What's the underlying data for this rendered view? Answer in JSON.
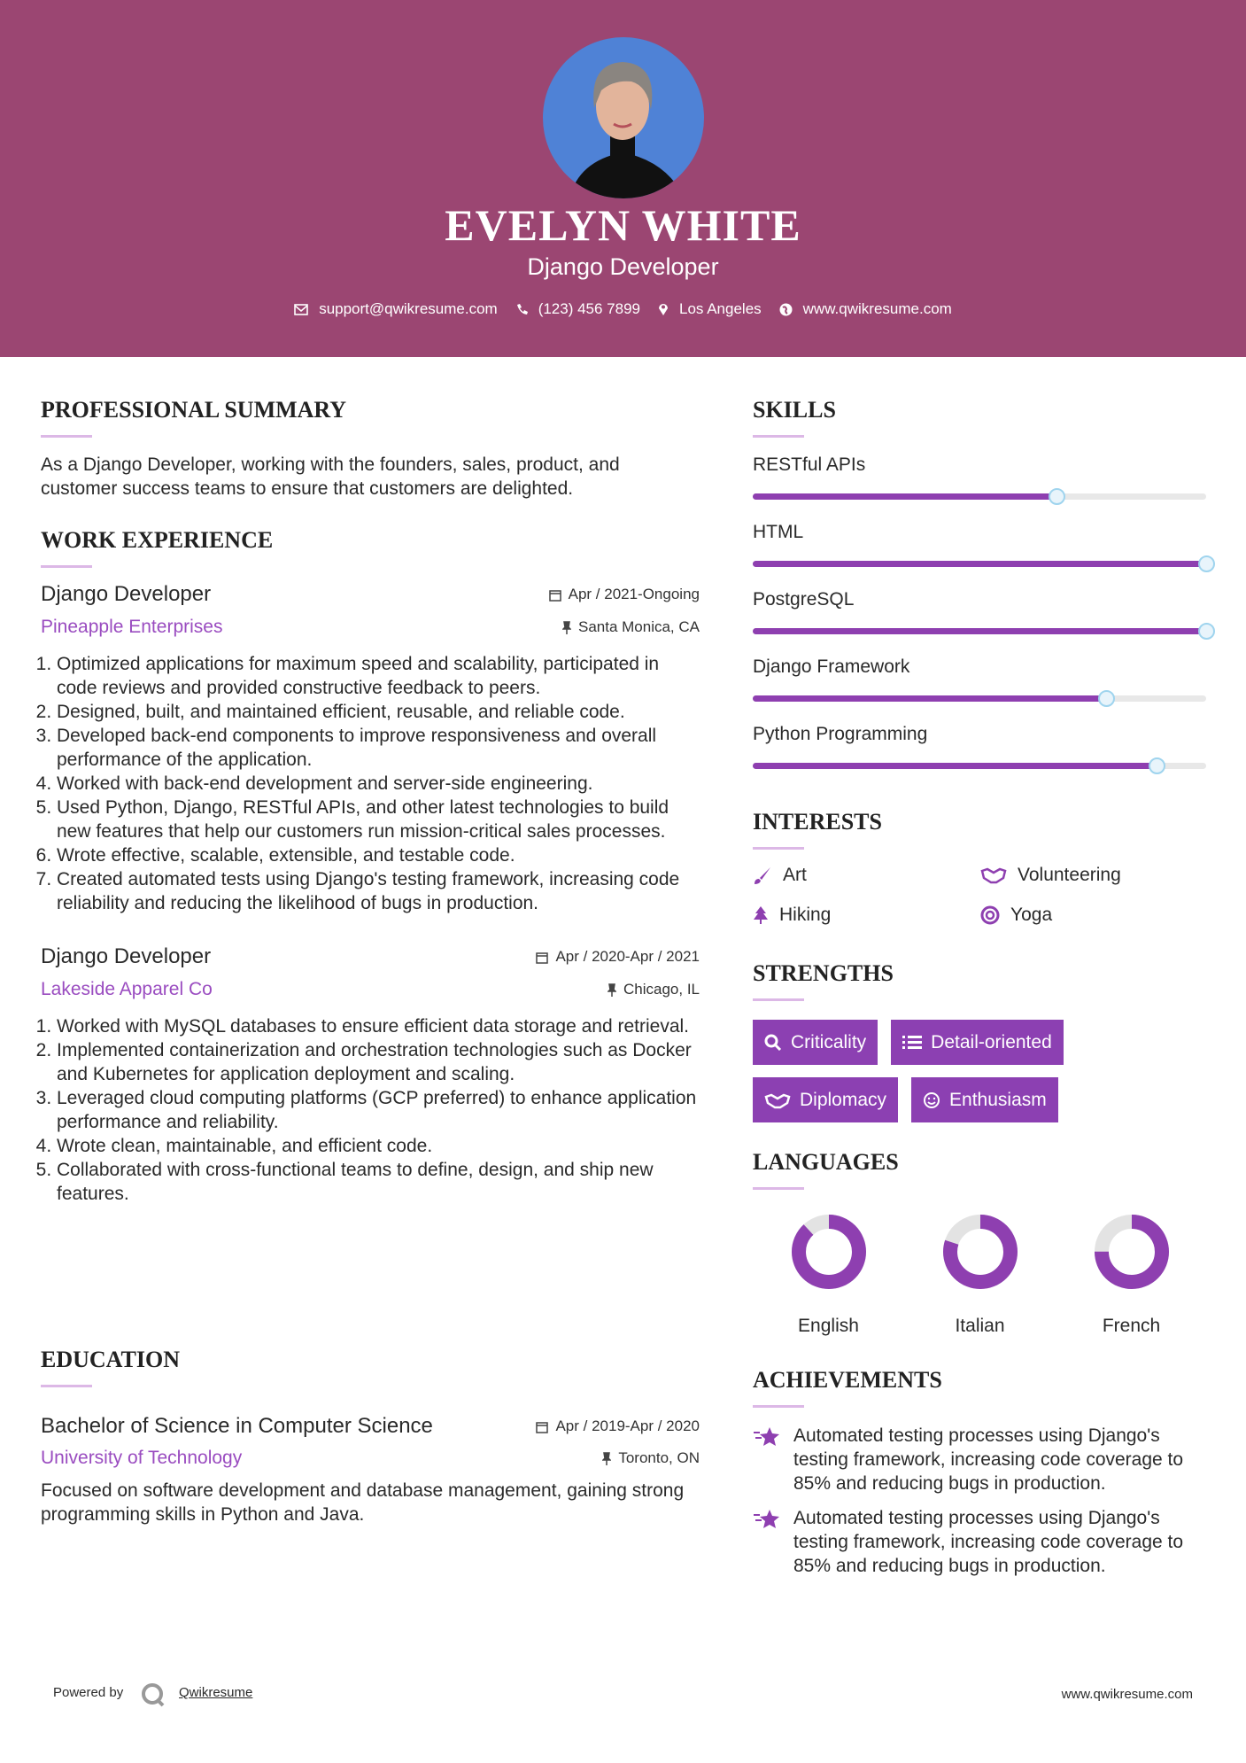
{
  "header": {
    "name": "EVELYN WHITE",
    "title": "Django Developer",
    "contact": {
      "email": "support@qwikresume.com",
      "phone": "(123) 456 7899",
      "location": "Los Angeles",
      "website": "www.qwikresume.com"
    }
  },
  "summary": {
    "heading": "PROFESSIONAL SUMMARY",
    "text": "As a Django Developer, working with the founders, sales, product, and customer success teams to ensure that customers are delighted."
  },
  "experience": {
    "heading": "WORK EXPERIENCE",
    "jobs": [
      {
        "title": "Django Developer",
        "date": "Apr / 2021-Ongoing",
        "company": "Pineapple Enterprises",
        "location": "Santa Monica, CA",
        "bullets": [
          "Optimized applications for maximum speed and scalability, participated in code reviews and provided constructive feedback to peers.",
          "Designed, built, and maintained efficient, reusable, and reliable code.",
          "Developed back-end components to improve responsiveness and overall performance of the application.",
          "Worked with back-end development and server-side engineering.",
          "Used Python, Django, RESTful APIs, and other latest technologies to build new features that help our customers run mission-critical sales processes.",
          "Wrote effective, scalable, extensible, and testable code.",
          "Created automated tests using Django's testing framework, increasing code reliability and reducing the likelihood of bugs in production."
        ]
      },
      {
        "title": "Django Developer",
        "date": "Apr / 2020-Apr / 2021",
        "company": "Lakeside Apparel Co",
        "location": "Chicago, IL",
        "bullets": [
          "Worked with MySQL databases to ensure efficient data storage and retrieval.",
          "Implemented containerization and orchestration technologies such as Docker and Kubernetes for application deployment and scaling.",
          "Leveraged cloud computing platforms (GCP preferred) to enhance application performance and reliability.",
          "Wrote clean, maintainable, and efficient code.",
          "Collaborated with cross-functional teams to define, design, and ship new features."
        ]
      }
    ]
  },
  "education": {
    "heading": "EDUCATION",
    "degree": "Bachelor of Science in Computer Science",
    "date": "Apr / 2019-Apr / 2020",
    "school": "University of Technology",
    "location": "Toronto, ON",
    "description": "Focused on software development and database management, gaining strong programming skills in Python and Java."
  },
  "skills": {
    "heading": "SKILLS",
    "items": [
      {
        "name": "RESTful APIs",
        "level": 67
      },
      {
        "name": "HTML",
        "level": 100
      },
      {
        "name": "PostgreSQL",
        "level": 100
      },
      {
        "name": "Django Framework",
        "level": 78
      },
      {
        "name": "Python Programming",
        "level": 89
      }
    ]
  },
  "interests": {
    "heading": "INTERESTS",
    "items": [
      "Art",
      "Volunteering",
      "Hiking",
      "Yoga"
    ]
  },
  "strengths": {
    "heading": "STRENGTHS",
    "items": [
      "Criticality",
      "Detail-oriented",
      "Diplomacy",
      "Enthusiasm"
    ]
  },
  "languages": {
    "heading": "LANGUAGES",
    "items": [
      {
        "name": "English",
        "level": 88
      },
      {
        "name": "Italian",
        "level": 80
      },
      {
        "name": "French",
        "level": 75
      }
    ]
  },
  "achievements": {
    "heading": "ACHIEVEMENTS",
    "items": [
      "Automated testing processes using Django's testing framework, increasing code coverage to 85% and reducing bugs in production.",
      "Automated testing processes using Django's testing framework, increasing code coverage to 85% and reducing bugs in production."
    ]
  },
  "footer": {
    "powered_by": "Powered by",
    "brand": "Qwikresume",
    "website": "www.qwikresume.com"
  }
}
